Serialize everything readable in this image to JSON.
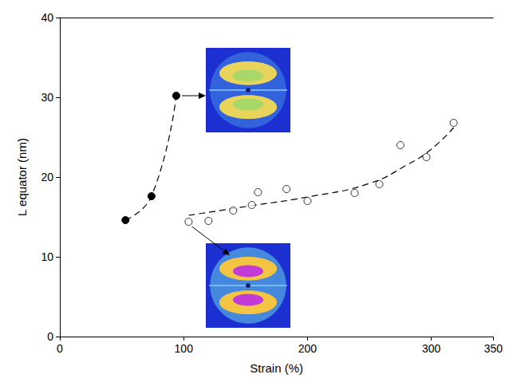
{
  "chart_data": {
    "type": "scatter",
    "x_label": "Strain (%)",
    "y_label": "L equator (nm)",
    "xlim": [
      0,
      350
    ],
    "xticks": [
      0,
      100,
      200,
      300
    ],
    "ylim": [
      0,
      40
    ],
    "yticks": [
      0,
      10,
      20,
      30,
      40
    ],
    "grid": false,
    "series": [
      {
        "type": "line",
        "x": [
          53,
          74,
          94
        ],
        "values": [
          14.6,
          17.6,
          30.2
        ],
        "color": "#000000",
        "marker": "circle",
        "line_style": "dashed"
      },
      {
        "type": "scatter",
        "x": [
          104,
          120,
          140,
          155,
          160,
          183,
          200,
          238,
          258,
          275,
          296,
          318
        ],
        "values": [
          14.4,
          14.5,
          15.8,
          16.5,
          18.1,
          18.5,
          17.0,
          18.0,
          19.1,
          24.0,
          22.5,
          26.8
        ],
        "color": "#000000",
        "marker": "open_circle"
      },
      {
        "type": "line",
        "x": [
          104,
          150,
          200,
          250,
          280,
          300,
          318
        ],
        "values": [
          15.2,
          16.3,
          17.5,
          19.2,
          21.5,
          23.5,
          26.2
        ],
        "color": "#000000",
        "marker": "none",
        "line_style": "dashed"
      }
    ]
  }
}
